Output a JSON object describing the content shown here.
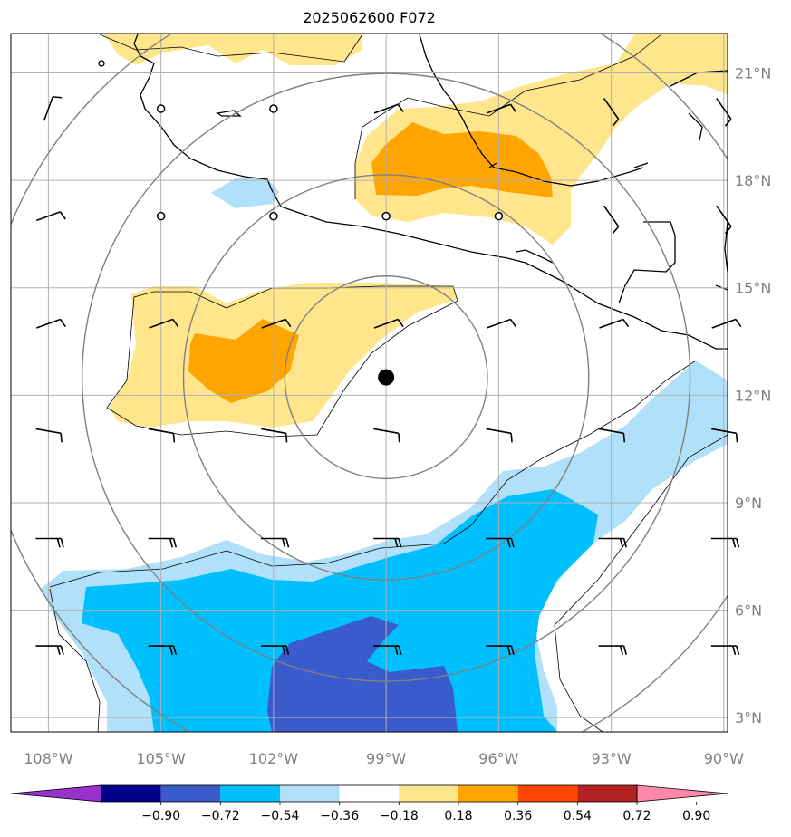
{
  "title": "2025062600 F072",
  "map": {
    "lon_range": [
      -109,
      -89.9
    ],
    "lat_range": [
      2.6,
      22.1
    ],
    "lon_ticks": [
      {
        "value": -108,
        "label": "108°W"
      },
      {
        "value": -105,
        "label": "105°W"
      },
      {
        "value": -102,
        "label": "102°W"
      },
      {
        "value": -99,
        "label": "99°W"
      },
      {
        "value": -96,
        "label": "96°W"
      },
      {
        "value": -93,
        "label": "93°W"
      },
      {
        "value": -90,
        "label": "90°W"
      }
    ],
    "lat_ticks": [
      {
        "value": 3,
        "label": "3°N"
      },
      {
        "value": 6,
        "label": "6°N"
      },
      {
        "value": 9,
        "label": "9°N"
      },
      {
        "value": 12,
        "label": "12°N"
      },
      {
        "value": 15,
        "label": "15°N"
      },
      {
        "value": 18,
        "label": "18°N"
      },
      {
        "value": 21,
        "label": "21°N"
      }
    ],
    "center_marker": {
      "lon": -99,
      "lat": 12.5
    },
    "range_rings_deg": [
      2.7,
      5.4,
      8.1,
      10.8
    ],
    "calm_stations": [
      {
        "lon": -105,
        "lat": 20
      },
      {
        "lon": -102,
        "lat": 20
      },
      {
        "lon": -105,
        "lat": 17
      },
      {
        "lon": -102,
        "lat": 17
      },
      {
        "lon": -99,
        "lat": 17
      },
      {
        "lon": -96,
        "lat": 17
      }
    ],
    "coastline_color": "#000000",
    "grid_color": "#b0b0b0",
    "ring_color": "#808080"
  },
  "colorbar": {
    "colors": [
      "#9932cc",
      "#00008b",
      "#3a5bcc",
      "#00bfff",
      "#b0e0fa",
      "#ffffff",
      "#ffe68c",
      "#ffa500",
      "#ff4500",
      "#b22222",
      "#ff88aa"
    ],
    "labels": [
      "−0.90",
      "−0.72",
      "−0.54",
      "−0.36",
      "−0.18",
      "0.18",
      "0.36",
      "0.54",
      "0.72",
      "0.90"
    ],
    "thresholds": [
      -0.9,
      -0.72,
      -0.54,
      -0.36,
      -0.18,
      0.18,
      0.36,
      0.54,
      0.72,
      0.9
    ]
  }
}
